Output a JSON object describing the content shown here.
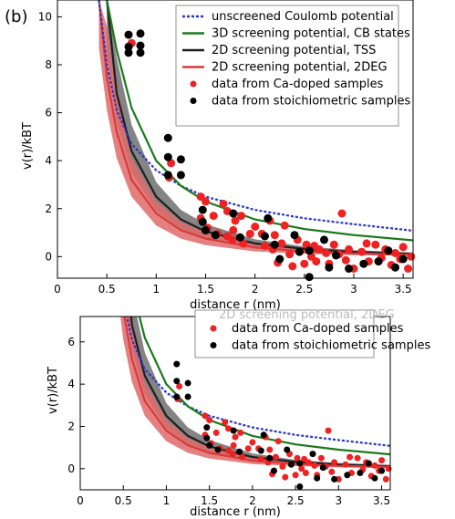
{
  "panel_label": "(b)",
  "chart_data": [
    {
      "type": "line",
      "panel": "top",
      "xlabel": "distance r (nm)",
      "ylabel": "v(r)/kBT",
      "xlim": [
        0,
        3.6
      ],
      "ylim": [
        -0.9,
        10.7
      ],
      "xticks": [
        0,
        0.5,
        1,
        1.5,
        2,
        2.5,
        3,
        3.5
      ],
      "xtick_labels": [
        "0",
        "0.5",
        "1",
        "1.5",
        "2",
        "2.5",
        "3",
        "3.5"
      ],
      "yticks": [
        0,
        2,
        4,
        6,
        8,
        10
      ],
      "ytick_labels": [
        "0",
        "2",
        "4",
        "6",
        "8",
        "10"
      ],
      "legend_position": "top-right",
      "series": [
        {
          "name": "unscreened Coulomb potential",
          "kind": "line",
          "style": "dotted",
          "color": "#2b36c9",
          "x": [
            0.42,
            0.5,
            0.6,
            0.75,
            1.0,
            1.25,
            1.5,
            2.0,
            2.5,
            3.0,
            3.6
          ],
          "y": [
            10.7,
            8.0,
            6.1,
            4.7,
            3.6,
            2.95,
            2.5,
            1.95,
            1.6,
            1.35,
            1.08
          ]
        },
        {
          "name": "3D screening potential, CB states",
          "kind": "line",
          "color": "#1a7a1a",
          "x": [
            0.5,
            0.6,
            0.75,
            1.0,
            1.25,
            1.5,
            2.0,
            2.5,
            3.0,
            3.6
          ],
          "y": [
            10.7,
            8.6,
            6.2,
            4.0,
            2.95,
            2.3,
            1.55,
            1.15,
            0.9,
            0.68
          ]
        },
        {
          "name": "2D screening potential, TSS",
          "kind": "band",
          "color": "#1e1e1e",
          "band_color": "#6e6e6e",
          "x": [
            0.5,
            0.6,
            0.75,
            1.0,
            1.25,
            1.5,
            2.0,
            2.5,
            3.0,
            3.6
          ],
          "y": [
            10.7,
            6.8,
            4.4,
            2.5,
            1.55,
            1.05,
            0.55,
            0.32,
            0.2,
            0.12
          ],
          "y_low": [
            8.5,
            5.6,
            3.5,
            1.9,
            1.15,
            0.75,
            0.38,
            0.22,
            0.13,
            0.07
          ],
          "y_high": [
            10.7,
            8.3,
            5.5,
            3.1,
            1.95,
            1.35,
            0.72,
            0.42,
            0.27,
            0.17
          ]
        },
        {
          "name": "2D screening potential, 2DEG",
          "kind": "band",
          "color": "#d93a3a",
          "band_color": "#e06a6a",
          "x": [
            0.42,
            0.5,
            0.6,
            0.75,
            1.0,
            1.25,
            1.5,
            2.0,
            2.5,
            3.0,
            3.6
          ],
          "y": [
            10.7,
            7.5,
            5.2,
            3.2,
            1.8,
            1.1,
            0.75,
            0.38,
            0.22,
            0.13,
            0.08
          ],
          "y_low": [
            8.7,
            6.1,
            4.1,
            2.5,
            1.3,
            0.75,
            0.48,
            0.22,
            0.12,
            0.06,
            0.03
          ],
          "y_high": [
            10.7,
            9.6,
            6.7,
            4.1,
            2.3,
            1.45,
            1.0,
            0.52,
            0.32,
            0.2,
            0.13
          ]
        },
        {
          "name": "data from Ca-doped samples",
          "kind": "scatter",
          "color": "#ee2222",
          "points": [
            [
              0.75,
              8.9
            ],
            [
              1.13,
              3.3
            ],
            [
              1.15,
              3.9
            ],
            [
              1.45,
              2.5
            ],
            [
              1.5,
              2.3
            ],
            [
              1.45,
              1.6
            ],
            [
              1.52,
              1.2
            ],
            [
              1.58,
              1.7
            ],
            [
              1.62,
              0.95
            ],
            [
              1.68,
              2.2
            ],
            [
              1.72,
              1.9
            ],
            [
              1.72,
              0.85
            ],
            [
              1.77,
              0.7
            ],
            [
              1.78,
              1.1
            ],
            [
              1.8,
              1.5
            ],
            [
              1.86,
              1.7
            ],
            [
              1.88,
              0.55
            ],
            [
              1.95,
              0.95
            ],
            [
              2.0,
              1.25
            ],
            [
              2.07,
              0.95
            ],
            [
              2.1,
              0.45
            ],
            [
              2.15,
              1.5
            ],
            [
              2.18,
              0.3
            ],
            [
              2.2,
              0.9
            ],
            [
              2.23,
              -0.25
            ],
            [
              2.27,
              0.55
            ],
            [
              2.3,
              1.3
            ],
            [
              2.35,
              0.1
            ],
            [
              2.38,
              -0.4
            ],
            [
              2.43,
              0.7
            ],
            [
              2.45,
              0.2
            ],
            [
              2.5,
              -0.3
            ],
            [
              2.52,
              0.5
            ],
            [
              2.57,
              0.0
            ],
            [
              2.6,
              0.45
            ],
            [
              2.62,
              -0.2
            ],
            [
              2.65,
              0.3
            ],
            [
              2.72,
              0.15
            ],
            [
              2.75,
              -0.3
            ],
            [
              2.8,
              0.5
            ],
            [
              2.85,
              0.1
            ],
            [
              2.88,
              1.8
            ],
            [
              2.92,
              -0.15
            ],
            [
              2.95,
              0.3
            ],
            [
              3.0,
              -0.5
            ],
            [
              3.08,
              0.2
            ],
            [
              3.13,
              0.55
            ],
            [
              3.15,
              -0.2
            ],
            [
              3.22,
              0.5
            ],
            [
              3.28,
              -0.05
            ],
            [
              3.32,
              0.3
            ],
            [
              3.38,
              -0.35
            ],
            [
              3.42,
              0.15
            ],
            [
              3.47,
              -0.1
            ],
            [
              3.5,
              0.4
            ],
            [
              3.55,
              -0.5
            ],
            [
              3.58,
              0.0
            ]
          ]
        },
        {
          "name": "data from stoichiometric samples",
          "kind": "scatter",
          "color": "#000000",
          "points": [
            [
              0.72,
              9.25
            ],
            [
              0.72,
              8.75
            ],
            [
              0.72,
              8.5
            ],
            [
              0.84,
              9.3
            ],
            [
              0.84,
              8.8
            ],
            [
              0.84,
              8.5
            ],
            [
              1.12,
              4.95
            ],
            [
              1.12,
              4.15
            ],
            [
              1.12,
              3.4
            ],
            [
              1.25,
              4.05
            ],
            [
              1.25,
              3.4
            ],
            [
              1.47,
              1.95
            ],
            [
              1.47,
              1.45
            ],
            [
              1.5,
              1.1
            ],
            [
              1.6,
              0.9
            ],
            [
              1.78,
              1.8
            ],
            [
              1.85,
              0.8
            ],
            [
              2.1,
              0.85
            ],
            [
              2.13,
              1.6
            ],
            [
              2.2,
              0.5
            ],
            [
              2.25,
              -0.1
            ],
            [
              2.4,
              0.9
            ],
            [
              2.45,
              0.2
            ],
            [
              2.55,
              -0.85
            ],
            [
              2.55,
              0.25
            ],
            [
              2.7,
              0.7
            ],
            [
              2.75,
              -0.45
            ],
            [
              2.82,
              0.05
            ],
            [
              2.95,
              -0.5
            ],
            [
              3.1,
              -0.3
            ],
            [
              3.25,
              -0.2
            ],
            [
              3.35,
              0.25
            ],
            [
              3.42,
              -0.45
            ],
            [
              3.5,
              -0.1
            ]
          ]
        }
      ]
    },
    {
      "type": "line",
      "panel": "bottom",
      "xlabel": "distance r (nm)",
      "ylabel": "v(r)/kBT",
      "xlim": [
        0,
        3.6
      ],
      "ylim": [
        -1.0,
        7.2
      ],
      "xticks": [
        0,
        0.5,
        1,
        1.5,
        2,
        2.5,
        3,
        3.5
      ],
      "xtick_labels": [
        "0",
        "0.5",
        "1",
        "1.5",
        "2",
        "2.5",
        "3",
        "3.5"
      ],
      "yticks": [
        0,
        2,
        4,
        6
      ],
      "ytick_labels": [
        "0",
        "2",
        "4",
        "6"
      ],
      "legend_position": "top-right",
      "visible_legend": [
        "data from Ca-doped samples",
        "data from stoichiometric samples"
      ],
      "partial_legend_text": "2D screening potential, 2DEG"
    }
  ]
}
